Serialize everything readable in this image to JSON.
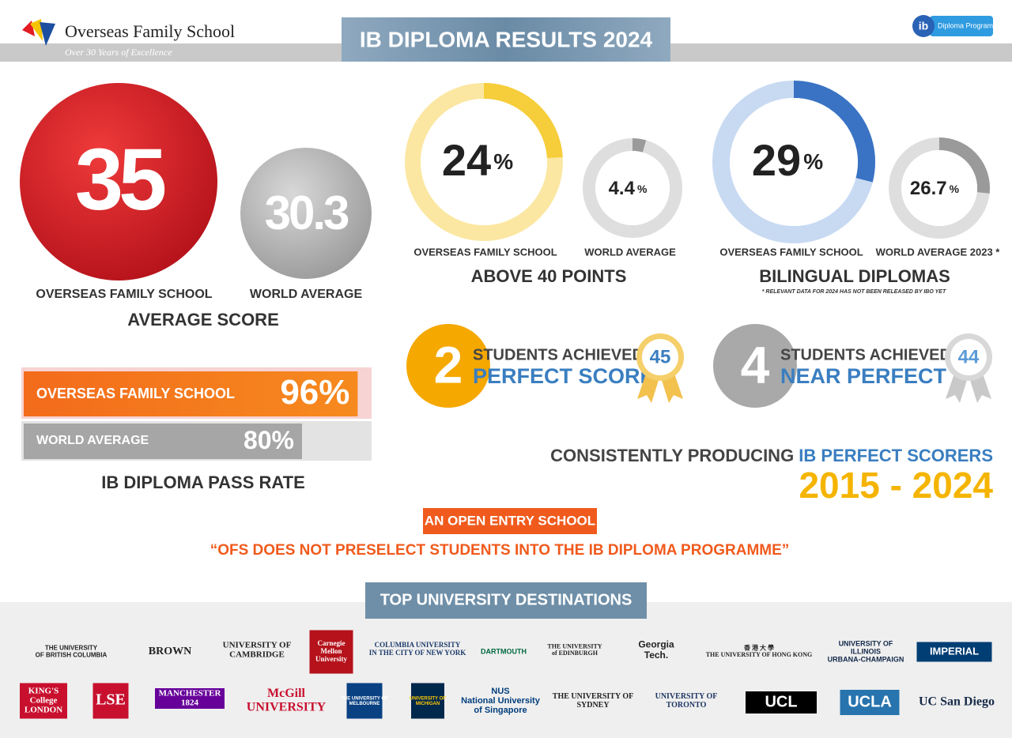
{
  "header": {
    "school": "Overseas Family School",
    "tagline": "Over 30 Years of Excellence",
    "title": "IB DIPLOMA RESULTS 2024",
    "ib_logo": "Diploma Programme"
  },
  "average_score": {
    "caption": "AVERAGE SCORE",
    "school": {
      "label": "OVERSEAS FAMILY SCHOOL",
      "value": 35
    },
    "world": {
      "label": "WORLD AVERAGE",
      "value": 30.3
    }
  },
  "above_40": {
    "caption": "ABOVE 40 POINTS",
    "school": {
      "label": "OVERSEAS FAMILY SCHOOL",
      "value": 24,
      "unit": "%"
    },
    "world": {
      "label": "WORLD AVERAGE",
      "value": 4.4,
      "unit": "%"
    }
  },
  "bilingual": {
    "caption": "BILINGUAL DIPLOMAS",
    "footnote": "* RELEVANT DATA FOR 2024 HAS NOT BEEN RELEASED BY IBO YET",
    "school": {
      "label": "OVERSEAS FAMILY SCHOOL",
      "value": 29,
      "unit": "%"
    },
    "world": {
      "label": "WORLD AVERAGE 2023 *",
      "value": 26.7,
      "unit": "%"
    }
  },
  "perfect": {
    "count": 2,
    "line1": "STUDENTS ACHIEVED",
    "line2": "PERFECT SCORE",
    "score": 45
  },
  "near_perfect": {
    "count": 4,
    "line1": "STUDENTS ACHIEVED",
    "line2": "NEAR PERFECT",
    "score": 44
  },
  "pass_rate": {
    "caption": "IB DIPLOMA PASS RATE",
    "school": {
      "label": "OVERSEAS FAMILY SCHOOL",
      "value": 96,
      "value_label": "96%"
    },
    "world": {
      "label": "WORLD AVERAGE",
      "value": 80,
      "value_label": "80%"
    }
  },
  "consistency": {
    "text": "CONSISTENTLY PRODUCING ",
    "highlight": "IB PERFECT SCORERS",
    "years": "2015 - 2024"
  },
  "open_entry": {
    "badge": "AN OPEN ENTRY SCHOOL",
    "quote": "“OFS DOES NOT PRESELECT STUDENTS INTO THE IB DIPLOMA PROGRAMME”"
  },
  "universities": {
    "title": "TOP UNIVERSITY DESTINATIONS",
    "logos": [
      [
        "THE UNIVERSITY",
        "OF BRITISH COLUMBIA"
      ],
      [
        "BROWN"
      ],
      [
        "UNIVERSITY OF",
        "CAMBRIDGE"
      ],
      [
        "Carnegie",
        "Mellon",
        "University"
      ],
      [
        "COLUMBIA UNIVERSITY",
        "IN THE CITY OF NEW YORK"
      ],
      [
        "DARTMOUTH"
      ],
      [
        "THE UNIVERSITY",
        "of EDINBURGH"
      ],
      [
        "Georgia",
        "Tech."
      ],
      [
        "香 港 大 學",
        "THE UNIVERSITY OF HONG KONG"
      ],
      [
        "UNIVERSITY OF",
        "ILLINOIS",
        "URBANA-CHAMPAIGN"
      ],
      [
        "IMPERIAL"
      ],
      [
        "KING'S",
        "College",
        "LONDON"
      ],
      [
        "LSE"
      ],
      [
        "MANCHESTER",
        "1824"
      ],
      [
        "McGill",
        "UNIVERSITY"
      ],
      [
        "THE UNIVERSITY OF",
        "MELBOURNE"
      ],
      [
        "UNIVERSITY OF",
        "MICHIGAN"
      ],
      [
        "NUS",
        "National University",
        "of Singapore"
      ],
      [
        "THE UNIVERSITY OF",
        "SYDNEY"
      ],
      [
        "UNIVERSITY OF",
        "TORONTO"
      ],
      [
        "UCL"
      ],
      [
        "UCLA"
      ],
      [
        "UC San Diego"
      ]
    ]
  }
}
